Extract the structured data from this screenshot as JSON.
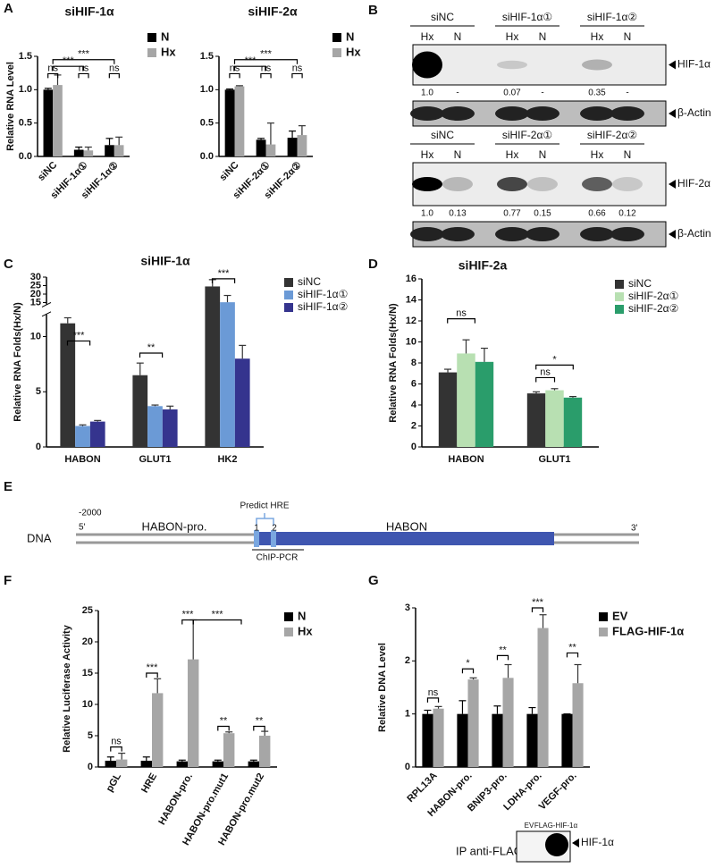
{
  "chart_data": [
    {
      "panel": "A",
      "type": "bar",
      "title": "siHIF-1α",
      "y_label": "Relative RNA Level",
      "categories": [
        "siNC",
        "siHIF-1α①",
        "siHIF-1α②"
      ],
      "series": [
        {
          "name": "N",
          "color": "#000000",
          "values": [
            1.0,
            0.1,
            0.17
          ],
          "errors": [
            0.02,
            0.04,
            0.1
          ]
        },
        {
          "name": "Hx",
          "color": "#a6a6a6",
          "values": [
            1.07,
            0.09,
            0.17
          ],
          "errors": [
            0.15,
            0.05,
            0.12
          ]
        }
      ],
      "ylim": [
        0,
        1.5
      ],
      "yticks": [
        {
          "value": 0,
          "label": "0.0"
        },
        0.5,
        {
          "value": 1,
          "label": "1.0"
        },
        1.5
      ],
      "annotations": [
        "***",
        "***",
        "ns",
        "ns",
        "ns"
      ]
    },
    {
      "type": "bar",
      "title": "siHIF-2α",
      "categories": [
        "siNC",
        "siHIF-2α①",
        "siHIF-2α②"
      ],
      "series": [
        {
          "name": "N",
          "color": "#000000",
          "values": [
            1.0,
            0.25,
            0.28
          ],
          "errors": [
            0.01,
            0.02,
            0.1
          ]
        },
        {
          "name": "Hx",
          "color": "#a6a6a6",
          "values": [
            1.05,
            0.18,
            0.32
          ],
          "errors": [
            0.01,
            0.32,
            0.14
          ]
        }
      ],
      "ylim": [
        0,
        1.5
      ],
      "yticks": [
        {
          "value": 0,
          "label": "0.0"
        },
        0.5,
        {
          "value": 1,
          "label": "1.0"
        },
        1.5
      ],
      "annotations": [
        "***",
        "***",
        "ns",
        "ns",
        "ns"
      ]
    },
    {
      "panel": "C",
      "type": "bar",
      "title": "siHIF-1α",
      "y_label": "Relative RNA Folds(Hx/N)",
      "categories": [
        "HABON",
        "GLUT1",
        "HK2"
      ],
      "series": [
        {
          "name": "siNC",
          "color": "#333333",
          "values": [
            11.2,
            6.5,
            24.5
          ],
          "errors": [
            0.5,
            1.1,
            4
          ]
        },
        {
          "name": "siHIF-1α①",
          "color": "#6b9ad6",
          "values": [
            1.9,
            3.7,
            15.2
          ],
          "errors": [
            0.1,
            0.1,
            4
          ]
        },
        {
          "name": "siHIF-1α②",
          "color": "#35348e",
          "values": [
            2.3,
            3.4,
            8.0
          ],
          "errors": [
            0.1,
            0.3,
            1.2
          ]
        }
      ],
      "ylim": [
        0,
        30
      ],
      "ybreak": [
        12,
        14
      ],
      "yticks": [
        0,
        5,
        10,
        15,
        20,
        25,
        30
      ],
      "annotations": [
        "***",
        "**",
        "***"
      ]
    },
    {
      "panel": "D",
      "type": "bar",
      "title": "siHIF-2a",
      "y_label": "Relative RNA Folds(Hx/N)",
      "categories": [
        "HABON",
        "GLUT1"
      ],
      "series": [
        {
          "name": "siNC",
          "color": "#333333",
          "values": [
            7.1,
            5.1
          ],
          "errors": [
            0.3,
            0.15
          ]
        },
        {
          "name": "siHIF-2α①",
          "color": "#b8e0b2",
          "values": [
            8.9,
            5.4
          ],
          "errors": [
            1.3,
            0.15
          ]
        },
        {
          "name": "siHIF-2α②",
          "color": "#2a9d6b",
          "values": [
            8.1,
            4.7
          ],
          "errors": [
            1.3,
            0.1
          ]
        }
      ],
      "ylim": [
        0,
        16
      ],
      "yticks": [
        0,
        2,
        4,
        6,
        8,
        10,
        12,
        14,
        16
      ],
      "annotations": [
        "ns",
        "ns",
        "*"
      ]
    },
    {
      "panel": "F",
      "type": "bar",
      "y_label": "Relative Luciferase Activity",
      "categories": [
        "pGL",
        "HRE",
        "HABON-pro.",
        "HABON-pro.mut1",
        "HABON-pro.mut2"
      ],
      "series": [
        {
          "name": "N",
          "color": "#000000",
          "values": [
            1,
            1,
            0.9,
            0.9,
            0.9
          ],
          "errors": [
            0.6,
            0.6,
            0.2,
            0.2,
            0.2
          ]
        },
        {
          "name": "Hx",
          "color": "#a6a6a6",
          "values": [
            1.2,
            11.8,
            17.2,
            5.4,
            5.0
          ],
          "errors": [
            1,
            2.3,
            6.3,
            0.2,
            0.7
          ]
        }
      ],
      "ylim": [
        0,
        25
      ],
      "yticks": [
        0,
        5,
        10,
        15,
        20,
        25
      ],
      "annotations": [
        "ns",
        "***",
        "***",
        "***",
        "**",
        "**"
      ]
    },
    {
      "panel": "G",
      "type": "bar",
      "y_label": "Relative DNA Level",
      "categories": [
        "RPL13A",
        "HABON-pro.",
        "BNIP3-pro.",
        "LDHA-pro.",
        "VEGF-pro."
      ],
      "series": [
        {
          "name": "EV",
          "color": "#000000",
          "values": [
            1,
            1,
            1,
            1,
            1
          ],
          "errors": [
            0.07,
            0.25,
            0.15,
            0.12,
            0.0
          ]
        },
        {
          "name": "FLAG-HIF-1α",
          "color": "#a6a6a6",
          "values": [
            1.1,
            1.65,
            1.68,
            2.62,
            1.58
          ],
          "errors": [
            0.04,
            0.03,
            0.25,
            0.25,
            0.35
          ]
        }
      ],
      "ylim": [
        0,
        3
      ],
      "yticks": [
        0,
        1,
        2,
        3
      ],
      "annotations": [
        "ns",
        "*",
        "**",
        "***",
        "**"
      ]
    }
  ],
  "panel_b": {
    "panel": "B",
    "blocks": [
      {
        "groups": [
          "siNC",
          "siHIF-1α①",
          "siHIF-1α②"
        ],
        "lanes": [
          "Hx",
          "N",
          "Hx",
          "N",
          "Hx",
          "N"
        ],
        "target": "HIF-1α",
        "quant": [
          "1.0",
          "-",
          "0.07",
          "-",
          "0.35",
          "-"
        ],
        "loading": "β-Actin"
      },
      {
        "groups": [
          "siNC",
          "siHIF-2α①",
          "siHIF-2α②"
        ],
        "lanes": [
          "Hx",
          "N",
          "Hx",
          "N",
          "Hx",
          "N"
        ],
        "target": "HIF-2α",
        "quant": [
          "1.0",
          "0.13",
          "0.77",
          "0.15",
          "0.66",
          "0.12"
        ],
        "loading": "β-Actin"
      }
    ]
  },
  "panel_e": {
    "panel": "E",
    "start": "-2000",
    "five_prime": "5'",
    "promoter": "HABON-pro.",
    "hre": "Predict HRE",
    "site1": "1",
    "site2": "2",
    "gene": "HABON",
    "three_prime": "3'",
    "row_label": "DNA",
    "pcr": "ChIP-PCR"
  },
  "panel_g_blot": {
    "ip": "IP anti-FLAG",
    "lanes": [
      "EV",
      "FLAG-HIF-1α"
    ],
    "target": "HIF-1α"
  }
}
